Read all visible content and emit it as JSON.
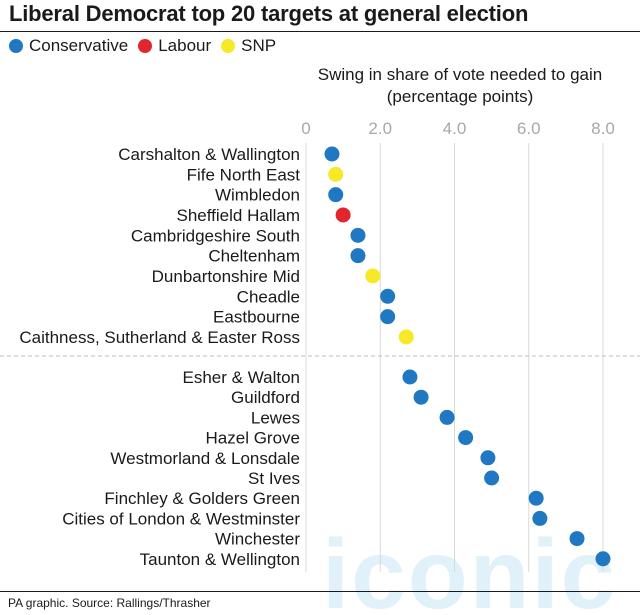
{
  "title": "Liberal Democrat top 20 targets at general election",
  "legend": [
    {
      "label": "Conservative",
      "color": "#1f78c1"
    },
    {
      "label": "Labour",
      "color": "#e3262c"
    },
    {
      "label": "SNP",
      "color": "#f7e928"
    }
  ],
  "subtitle_line1": "Swing in share of vote needed to gain",
  "subtitle_line2": "(percentage points)",
  "source": "PA graphic. Source: Rallings/Thrasher",
  "watermark": "iconic",
  "chart_data": {
    "type": "scatter",
    "title": "Liberal Democrat top 20 targets at general election",
    "xlabel": "Swing in share of vote needed to gain (percentage points)",
    "xlim": [
      0,
      8.4
    ],
    "xticks": [
      0,
      2.0,
      4.0,
      6.0,
      8.0
    ],
    "xtick_labels": [
      "0",
      "2.0",
      "4.0",
      "6.0",
      "8.0"
    ],
    "grid": "vertical",
    "legend_position": "top-left",
    "colors": {
      "Conservative": "#1f78c1",
      "Labour": "#e3262c",
      "SNP": "#f7e928"
    },
    "points": [
      {
        "seat": "Carshalton & Wallington",
        "party": "Conservative",
        "value": 0.7
      },
      {
        "seat": "Fife North East",
        "party": "SNP",
        "value": 0.8
      },
      {
        "seat": "Wimbledon",
        "party": "Conservative",
        "value": 0.8
      },
      {
        "seat": "Sheffield Hallam",
        "party": "Labour",
        "value": 1.0
      },
      {
        "seat": "Cambridgeshire South",
        "party": "Conservative",
        "value": 1.4
      },
      {
        "seat": "Cheltenham",
        "party": "Conservative",
        "value": 1.4
      },
      {
        "seat": "Dunbartonshire Mid",
        "party": "SNP",
        "value": 1.8
      },
      {
        "seat": "Cheadle",
        "party": "Conservative",
        "value": 2.2
      },
      {
        "seat": "Eastbourne",
        "party": "Conservative",
        "value": 2.2
      },
      {
        "seat": "Caithness, Sutherland & Easter Ross",
        "party": "SNP",
        "value": 2.7
      },
      {
        "seat": "Esher & Walton",
        "party": "Conservative",
        "value": 2.8
      },
      {
        "seat": "Guildford",
        "party": "Conservative",
        "value": 3.1
      },
      {
        "seat": "Lewes",
        "party": "Conservative",
        "value": 3.8
      },
      {
        "seat": "Hazel Grove",
        "party": "Conservative",
        "value": 4.3
      },
      {
        "seat": "Westmorland & Lonsdale",
        "party": "Conservative",
        "value": 4.9
      },
      {
        "seat": "St Ives",
        "party": "Conservative",
        "value": 5.0
      },
      {
        "seat": "Finchley & Golders Green",
        "party": "Conservative",
        "value": 6.2
      },
      {
        "seat": "Cities of London & Westminster",
        "party": "Conservative",
        "value": 6.3
      },
      {
        "seat": "Winchester",
        "party": "Conservative",
        "value": 7.3
      },
      {
        "seat": "Taunton & Wellington",
        "party": "Conservative",
        "value": 8.0
      }
    ]
  }
}
